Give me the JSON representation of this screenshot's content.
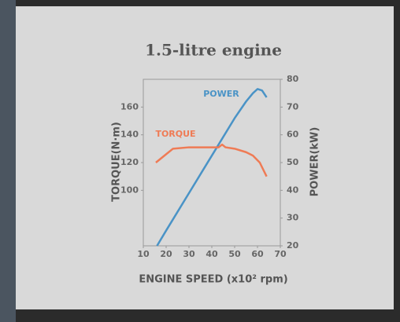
{
  "chart_data": {
    "type": "line",
    "title": "1.5-litre engine",
    "x_label": "ENGINE SPEED (x10² rpm)",
    "y_label": "TORQUE(N·m)",
    "y2_label": "POWER(kW)",
    "xlim": [
      10,
      70
    ],
    "xticks": [
      10,
      20,
      30,
      40,
      50,
      60,
      70
    ],
    "ylim": [
      60,
      180
    ],
    "yticks": [
      100,
      120,
      140,
      160
    ],
    "y2lim": [
      20,
      80
    ],
    "y2ticks": [
      20,
      30,
      40,
      50,
      60,
      70,
      80
    ],
    "series": [
      {
        "name": "POWER",
        "color": "#4a93c6",
        "axis": "y2",
        "x": [
          16,
          20,
          30,
          40,
          50,
          55,
          58,
          60,
          62,
          64
        ],
        "values": [
          20,
          25.5,
          39,
          52.5,
          66,
          72,
          75,
          76.5,
          76,
          73.5
        ]
      },
      {
        "name": "TORQUE",
        "color": "#ef7b55",
        "axis": "y",
        "x": [
          15.5,
          20,
          23,
          30,
          40,
          43,
          44.5,
          46,
          50,
          55,
          58,
          61,
          64
        ],
        "values": [
          120,
          126,
          130,
          131,
          131,
          131,
          133,
          131,
          130,
          127.5,
          125,
          120,
          110
        ]
      }
    ]
  }
}
